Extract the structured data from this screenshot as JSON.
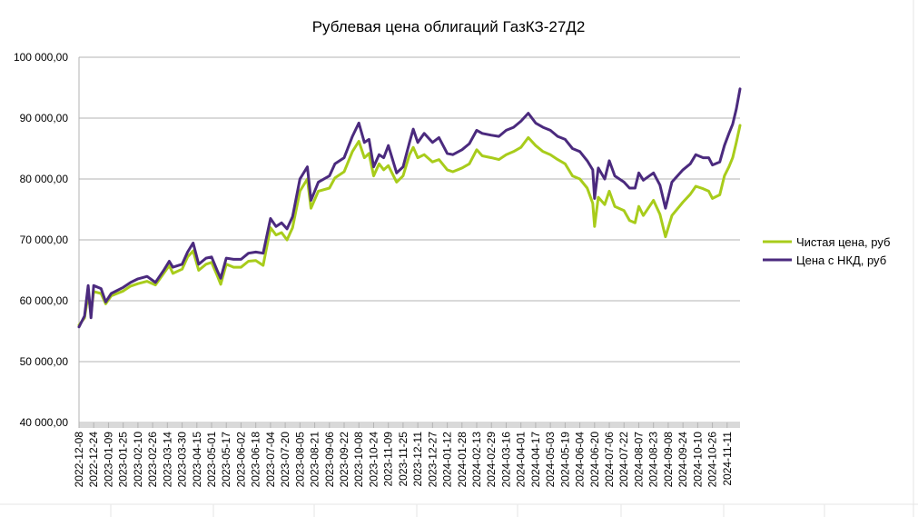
{
  "chart_data": {
    "type": "line",
    "title": "Рублевая цена облигаций ГазКЗ-27Д2",
    "xlabel": "",
    "ylabel": "",
    "ylim": [
      40000,
      100000
    ],
    "y_ticks": [
      "40 000,00",
      "50 000,00",
      "60 000,00",
      "70 000,00",
      "80 000,00",
      "90 000,00",
      "100 000,00"
    ],
    "y_tick_values": [
      40000,
      50000,
      60000,
      70000,
      80000,
      90000,
      100000
    ],
    "grid": true,
    "legend_position": "right",
    "x_tick_labels": [
      "2022-12-08",
      "2022-12-24",
      "2023-01-09",
      "2023-01-25",
      "2023-02-10",
      "2023-02-26",
      "2023-03-14",
      "2023-03-30",
      "2023-04-15",
      "2023-05-01",
      "2023-05-17",
      "2023-06-02",
      "2023-06-18",
      "2023-07-04",
      "2023-07-20",
      "2023-08-05",
      "2023-08-21",
      "2023-09-06",
      "2023-09-22",
      "2023-10-08",
      "2023-10-24",
      "2023-11-09",
      "2023-11-25",
      "2023-12-11",
      "2023-12-27",
      "2024-01-12",
      "2024-01-28",
      "2024-02-13",
      "2024-02-29",
      "2024-03-16",
      "2024-04-01",
      "2024-04-17",
      "2024-05-03",
      "2024-05-19",
      "2024-06-04",
      "2024-06-20",
      "2024-07-06",
      "2024-07-22",
      "2024-08-07",
      "2024-08-23",
      "2024-09-08",
      "2024-09-24",
      "2024-10-10",
      "2024-10-26",
      "2024-11-11"
    ],
    "x_range": [
      "2022-12-08",
      "2024-11-25"
    ],
    "series": [
      {
        "name": "Чистая цена, руб",
        "color": "#a8cc1b",
        "points": [
          [
            "2022-12-08",
            56000
          ],
          [
            "2022-12-14",
            57200
          ],
          [
            "2022-12-18",
            61000
          ],
          [
            "2022-12-21",
            58000
          ],
          [
            "2022-12-24",
            61500
          ],
          [
            "2023-01-01",
            61200
          ],
          [
            "2023-01-06",
            59500
          ],
          [
            "2023-01-12",
            60800
          ],
          [
            "2023-01-25",
            61600
          ],
          [
            "2023-02-02",
            62400
          ],
          [
            "2023-02-10",
            62800
          ],
          [
            "2023-02-20",
            63200
          ],
          [
            "2023-03-01",
            62600
          ],
          [
            "2023-03-10",
            64500
          ],
          [
            "2023-03-16",
            65800
          ],
          [
            "2023-03-20",
            64500
          ],
          [
            "2023-03-30",
            65200
          ],
          [
            "2023-04-05",
            67200
          ],
          [
            "2023-04-11",
            68200
          ],
          [
            "2023-04-17",
            65000
          ],
          [
            "2023-04-25",
            66000
          ],
          [
            "2023-05-01",
            66300
          ],
          [
            "2023-05-07",
            64200
          ],
          [
            "2023-05-11",
            62700
          ],
          [
            "2023-05-17",
            66000
          ],
          [
            "2023-05-25",
            65500
          ],
          [
            "2023-06-02",
            65500
          ],
          [
            "2023-06-10",
            66500
          ],
          [
            "2023-06-18",
            66600
          ],
          [
            "2023-06-26",
            65800
          ],
          [
            "2023-07-04",
            72000
          ],
          [
            "2023-07-10",
            70800
          ],
          [
            "2023-07-16",
            71200
          ],
          [
            "2023-07-22",
            70000
          ],
          [
            "2023-07-28",
            72000
          ],
          [
            "2023-08-05",
            78000
          ],
          [
            "2023-08-13",
            80000
          ],
          [
            "2023-08-17",
            75200
          ],
          [
            "2023-08-25",
            78000
          ],
          [
            "2023-09-06",
            78500
          ],
          [
            "2023-09-12",
            80200
          ],
          [
            "2023-09-22",
            81200
          ],
          [
            "2023-10-01",
            84500
          ],
          [
            "2023-10-08",
            86200
          ],
          [
            "2023-10-14",
            83500
          ],
          [
            "2023-10-19",
            84200
          ],
          [
            "2023-10-24",
            80500
          ],
          [
            "2023-10-30",
            82500
          ],
          [
            "2023-11-04",
            81500
          ],
          [
            "2023-11-09",
            82200
          ],
          [
            "2023-11-18",
            79500
          ],
          [
            "2023-11-25",
            80500
          ],
          [
            "2023-12-02",
            84000
          ],
          [
            "2023-12-06",
            85200
          ],
          [
            "2023-12-11",
            83500
          ],
          [
            "2023-12-18",
            84000
          ],
          [
            "2023-12-27",
            82800
          ],
          [
            "2024-01-03",
            83200
          ],
          [
            "2024-01-12",
            81500
          ],
          [
            "2024-01-18",
            81200
          ],
          [
            "2024-01-28",
            81800
          ],
          [
            "2024-02-05",
            82500
          ],
          [
            "2024-02-13",
            84800
          ],
          [
            "2024-02-19",
            83800
          ],
          [
            "2024-02-29",
            83500
          ],
          [
            "2024-03-08",
            83200
          ],
          [
            "2024-03-16",
            84000
          ],
          [
            "2024-03-24",
            84500
          ],
          [
            "2024-04-01",
            85200
          ],
          [
            "2024-04-09",
            86800
          ],
          [
            "2024-04-17",
            85500
          ],
          [
            "2024-04-25",
            84500
          ],
          [
            "2024-05-03",
            84000
          ],
          [
            "2024-05-11",
            83200
          ],
          [
            "2024-05-19",
            82500
          ],
          [
            "2024-05-27",
            80500
          ],
          [
            "2024-06-04",
            80000
          ],
          [
            "2024-06-12",
            78500
          ],
          [
            "2024-06-18",
            76000
          ],
          [
            "2024-06-20",
            72200
          ],
          [
            "2024-06-24",
            77000
          ],
          [
            "2024-07-01",
            75800
          ],
          [
            "2024-07-06",
            78000
          ],
          [
            "2024-07-12",
            75500
          ],
          [
            "2024-07-22",
            74800
          ],
          [
            "2024-07-28",
            73200
          ],
          [
            "2024-08-03",
            72800
          ],
          [
            "2024-08-07",
            75500
          ],
          [
            "2024-08-12",
            74000
          ],
          [
            "2024-08-23",
            76500
          ],
          [
            "2024-08-30",
            74200
          ],
          [
            "2024-09-05",
            70500
          ],
          [
            "2024-09-12",
            74000
          ],
          [
            "2024-09-24",
            76200
          ],
          [
            "2024-10-02",
            77500
          ],
          [
            "2024-10-08",
            78800
          ],
          [
            "2024-10-16",
            78400
          ],
          [
            "2024-10-22",
            78000
          ],
          [
            "2024-10-26",
            76800
          ],
          [
            "2024-11-03",
            77400
          ],
          [
            "2024-11-08",
            80500
          ],
          [
            "2024-11-13",
            82000
          ],
          [
            "2024-11-17",
            83500
          ],
          [
            "2024-11-21",
            86000
          ],
          [
            "2024-11-25",
            88800
          ]
        ]
      },
      {
        "name": "Цена с НКД, руб",
        "color": "#4b2a7e",
        "points": [
          [
            "2022-12-08",
            55700
          ],
          [
            "2022-12-14",
            57500
          ],
          [
            "2022-12-18",
            62500
          ],
          [
            "2022-12-21",
            57200
          ],
          [
            "2022-12-24",
            62500
          ],
          [
            "2023-01-01",
            62000
          ],
          [
            "2023-01-06",
            59800
          ],
          [
            "2023-01-12",
            61200
          ],
          [
            "2023-01-25",
            62200
          ],
          [
            "2023-02-02",
            63000
          ],
          [
            "2023-02-10",
            63600
          ],
          [
            "2023-02-20",
            64000
          ],
          [
            "2023-03-01",
            63000
          ],
          [
            "2023-03-10",
            65000
          ],
          [
            "2023-03-16",
            66500
          ],
          [
            "2023-03-20",
            65500
          ],
          [
            "2023-03-30",
            66000
          ],
          [
            "2023-04-05",
            68000
          ],
          [
            "2023-04-11",
            69500
          ],
          [
            "2023-04-17",
            66000
          ],
          [
            "2023-04-25",
            67000
          ],
          [
            "2023-05-01",
            67200
          ],
          [
            "2023-05-07",
            65000
          ],
          [
            "2023-05-11",
            63700
          ],
          [
            "2023-05-17",
            67000
          ],
          [
            "2023-05-25",
            66800
          ],
          [
            "2023-06-02",
            66800
          ],
          [
            "2023-06-10",
            67800
          ],
          [
            "2023-06-18",
            68000
          ],
          [
            "2023-06-26",
            67800
          ],
          [
            "2023-07-04",
            73500
          ],
          [
            "2023-07-10",
            72200
          ],
          [
            "2023-07-16",
            72800
          ],
          [
            "2023-07-22",
            71800
          ],
          [
            "2023-07-28",
            73800
          ],
          [
            "2023-08-05",
            80000
          ],
          [
            "2023-08-13",
            82000
          ],
          [
            "2023-08-17",
            76500
          ],
          [
            "2023-08-25",
            79500
          ],
          [
            "2023-09-06",
            80500
          ],
          [
            "2023-09-12",
            82500
          ],
          [
            "2023-09-22",
            83500
          ],
          [
            "2023-10-01",
            87000
          ],
          [
            "2023-10-08",
            89200
          ],
          [
            "2023-10-14",
            86000
          ],
          [
            "2023-10-19",
            86500
          ],
          [
            "2023-10-24",
            82000
          ],
          [
            "2023-10-30",
            84000
          ],
          [
            "2023-11-04",
            83500
          ],
          [
            "2023-11-09",
            85500
          ],
          [
            "2023-11-18",
            81000
          ],
          [
            "2023-11-25",
            82000
          ],
          [
            "2023-12-02",
            86000
          ],
          [
            "2023-12-06",
            88200
          ],
          [
            "2023-12-11",
            86000
          ],
          [
            "2023-12-18",
            87500
          ],
          [
            "2023-12-27",
            86000
          ],
          [
            "2024-01-03",
            86800
          ],
          [
            "2024-01-12",
            84200
          ],
          [
            "2024-01-18",
            84000
          ],
          [
            "2024-01-28",
            84800
          ],
          [
            "2024-02-05",
            85800
          ],
          [
            "2024-02-13",
            88000
          ],
          [
            "2024-02-19",
            87500
          ],
          [
            "2024-02-29",
            87200
          ],
          [
            "2024-03-08",
            87000
          ],
          [
            "2024-03-16",
            88000
          ],
          [
            "2024-03-24",
            88500
          ],
          [
            "2024-04-01",
            89500
          ],
          [
            "2024-04-09",
            90800
          ],
          [
            "2024-04-17",
            89200
          ],
          [
            "2024-04-25",
            88500
          ],
          [
            "2024-05-03",
            88000
          ],
          [
            "2024-05-11",
            87000
          ],
          [
            "2024-05-19",
            86500
          ],
          [
            "2024-05-27",
            85000
          ],
          [
            "2024-06-04",
            84500
          ],
          [
            "2024-06-12",
            83000
          ],
          [
            "2024-06-18",
            81500
          ],
          [
            "2024-06-20",
            76800
          ],
          [
            "2024-06-24",
            81800
          ],
          [
            "2024-07-01",
            80000
          ],
          [
            "2024-07-06",
            83000
          ],
          [
            "2024-07-12",
            80500
          ],
          [
            "2024-07-22",
            79500
          ],
          [
            "2024-07-28",
            78500
          ],
          [
            "2024-08-03",
            78500
          ],
          [
            "2024-08-07",
            81000
          ],
          [
            "2024-08-12",
            79800
          ],
          [
            "2024-08-23",
            81000
          ],
          [
            "2024-08-30",
            79000
          ],
          [
            "2024-09-05",
            75200
          ],
          [
            "2024-09-12",
            79500
          ],
          [
            "2024-09-24",
            81500
          ],
          [
            "2024-10-02",
            82500
          ],
          [
            "2024-10-08",
            84000
          ],
          [
            "2024-10-16",
            83500
          ],
          [
            "2024-10-22",
            83500
          ],
          [
            "2024-10-26",
            82300
          ],
          [
            "2024-11-03",
            82800
          ],
          [
            "2024-11-08",
            85500
          ],
          [
            "2024-11-13",
            87500
          ],
          [
            "2024-11-17",
            89000
          ],
          [
            "2024-11-21",
            91500
          ],
          [
            "2024-11-25",
            94800
          ]
        ]
      }
    ]
  }
}
